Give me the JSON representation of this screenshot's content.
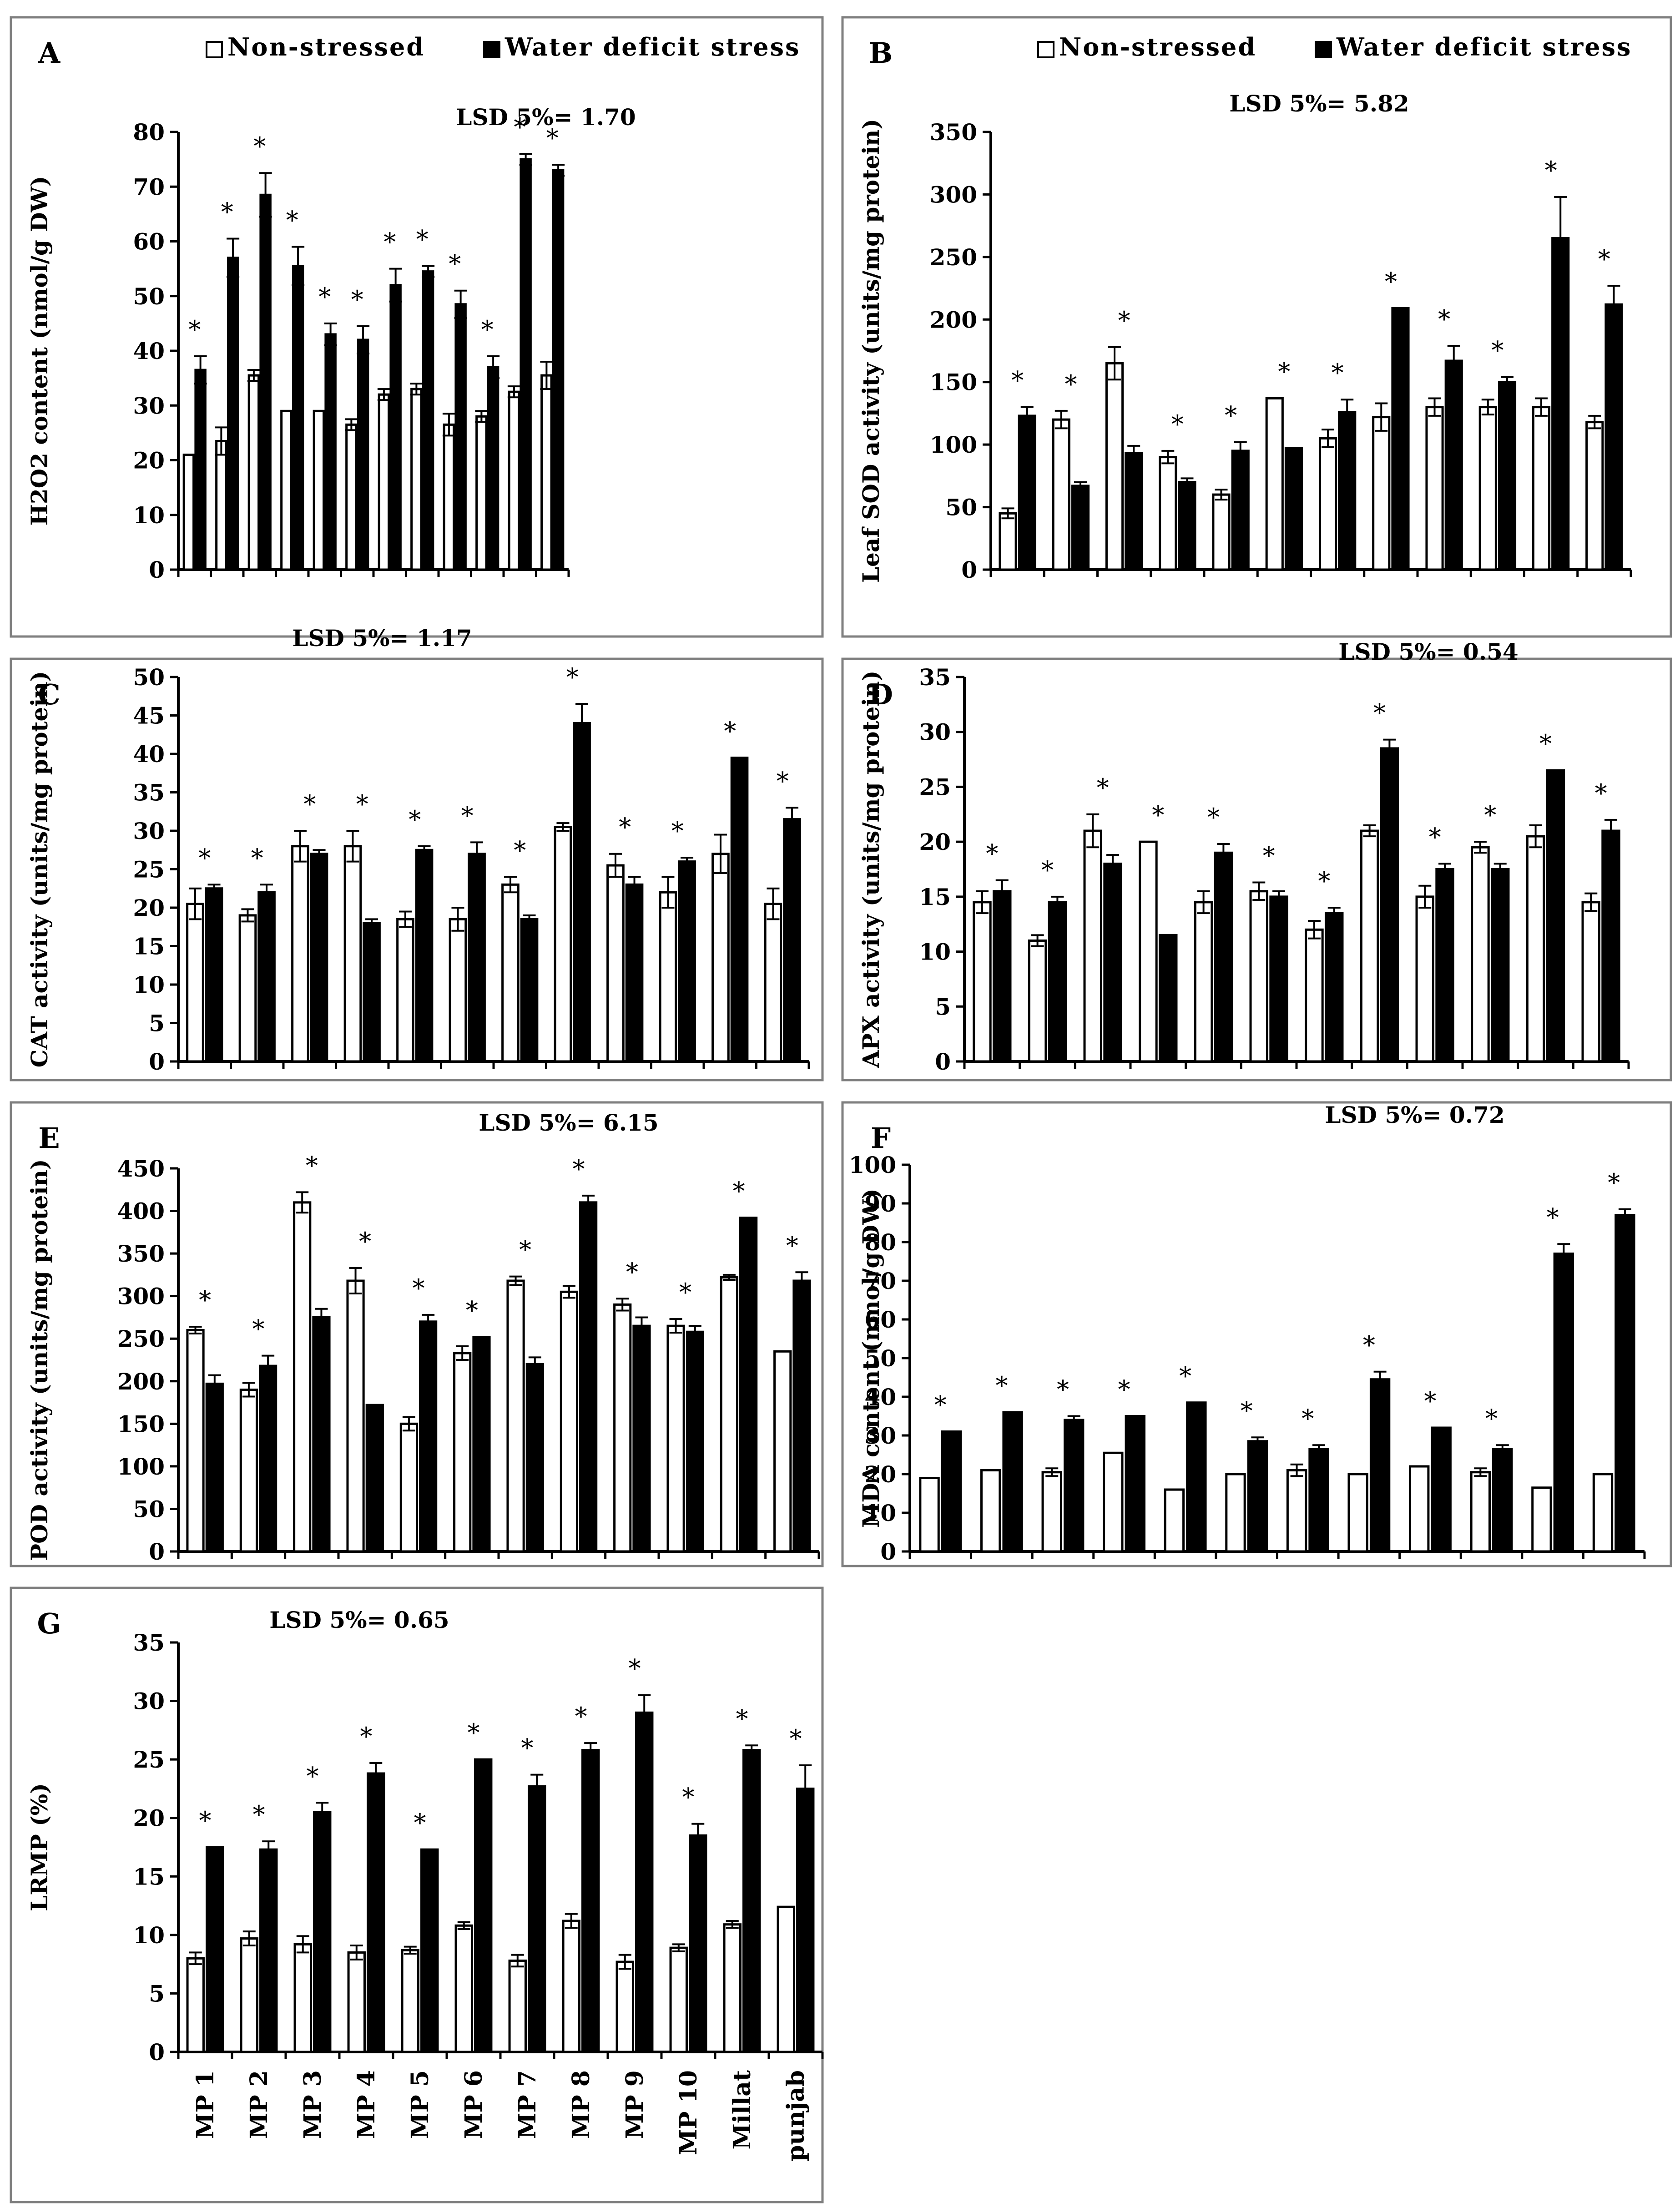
{
  "legend_labels": {
    "ns": "Non-stressed",
    "ws": "Water deficit stress"
  },
  "colors": {
    "ns": "#ffffff",
    "ws": "#000000",
    "frame": "#7f7f7f"
  },
  "categories": [
    "MP 1",
    "MP 2",
    "MP 3",
    "MP 4",
    "MP 5",
    "MP 6",
    "MP 7",
    "MP 8",
    "MP 9",
    "MP 10",
    "Millat",
    "punjab"
  ],
  "chart_data": [
    {
      "type": "bar",
      "letter": "A",
      "ylabel": "H2O2 content (nmol/g DW)",
      "lsd": "LSD 5%= 1.70",
      "ylim": [
        0,
        80
      ],
      "yticks": [
        0,
        10,
        20,
        30,
        40,
        50,
        60,
        70,
        80
      ],
      "legend": true,
      "series": [
        {
          "name": "Non-stressed",
          "values": [
            21,
            23.5,
            35.5,
            29,
            29,
            26.5,
            32,
            33,
            26.5,
            28,
            32.5,
            35.5
          ],
          "errors": [
            0,
            2.5,
            1,
            0,
            0,
            1,
            1,
            1,
            2,
            1,
            1,
            2.5
          ]
        },
        {
          "name": "Water deficit stress",
          "values": [
            36.5,
            57,
            68.5,
            55.5,
            43,
            42,
            52,
            54.5,
            48.5,
            37,
            75,
            73
          ],
          "errors": [
            2.5,
            3.5,
            4,
            3.5,
            2,
            2.5,
            3,
            1,
            2.5,
            2,
            1,
            1
          ]
        }
      ],
      "stars": [
        "*",
        "*",
        "*",
        "*",
        "*",
        "*",
        "*",
        "*",
        "*",
        "*",
        "*",
        "*"
      ]
    },
    {
      "type": "bar",
      "letter": "B",
      "ylabel": "Leaf SOD activity (units/mg protein)",
      "lsd": "LSD 5%= 5.82",
      "ylim": [
        0,
        350
      ],
      "yticks": [
        0,
        50,
        100,
        150,
        200,
        250,
        300,
        350
      ],
      "legend": true,
      "series": [
        {
          "name": "Non-stressed",
          "values": [
            45,
            120,
            165,
            90,
            60,
            137,
            105,
            122,
            130,
            130,
            130,
            118
          ],
          "errors": [
            4,
            7,
            13,
            5,
            4,
            0,
            7,
            11,
            7,
            6,
            7,
            5
          ]
        },
        {
          "name": "Water deficit stress",
          "values": [
            123,
            67,
            93,
            70,
            95,
            97,
            126,
            209,
            167,
            150,
            265,
            212
          ],
          "errors": [
            7,
            3,
            6,
            3,
            7,
            0,
            10,
            0,
            12,
            4,
            33,
            15
          ]
        }
      ],
      "stars": [
        "*",
        "*",
        "*",
        "*",
        "*",
        "*",
        "*",
        "*",
        "*",
        "*",
        "*",
        "*"
      ]
    },
    {
      "type": "bar",
      "letter": "C",
      "ylabel": "CAT activity (units/mg protein)",
      "lsd": "LSD 5%= 1.17",
      "ylim": [
        0,
        50
      ],
      "yticks": [
        0,
        5,
        10,
        15,
        20,
        25,
        30,
        35,
        40,
        45,
        50
      ],
      "legend": false,
      "series": [
        {
          "name": "Non-stressed",
          "values": [
            20.5,
            19,
            28,
            28,
            18.5,
            18.5,
            23,
            30.5,
            25.5,
            22,
            27,
            20.5
          ],
          "errors": [
            2,
            0.8,
            2,
            2,
            1,
            1.5,
            1,
            0.5,
            1.5,
            2,
            2.5,
            2
          ]
        },
        {
          "name": "Water deficit stress",
          "values": [
            22.5,
            22,
            27,
            18,
            27.5,
            27,
            18.5,
            44,
            23,
            26,
            39.5,
            31.5
          ],
          "errors": [
            0.5,
            1,
            0.5,
            0.5,
            0.5,
            1.5,
            0.5,
            2.5,
            1,
            0.5,
            0,
            1.5
          ]
        }
      ],
      "stars": [
        "*",
        "*",
        "*",
        "*",
        "*",
        "*",
        "*",
        "*",
        "*",
        "*",
        "*",
        "*"
      ]
    },
    {
      "type": "bar",
      "letter": "D",
      "ylabel": "APX activity (units/mg protein)",
      "lsd": "LSD 5%= 0.54",
      "ylim": [
        0,
        35
      ],
      "yticks": [
        0,
        5,
        10,
        15,
        20,
        25,
        30,
        35
      ],
      "legend": false,
      "series": [
        {
          "name": "Non-stressed",
          "values": [
            14.5,
            11,
            21,
            20,
            14.5,
            15.5,
            12,
            21,
            15,
            19.5,
            20.5,
            14.5
          ],
          "errors": [
            1,
            0.5,
            1.5,
            0,
            1,
            0.8,
            0.8,
            0.5,
            1,
            0.5,
            1,
            0.8
          ]
        },
        {
          "name": "Water deficit stress",
          "values": [
            15.5,
            14.5,
            18,
            11.5,
            19,
            15,
            13.5,
            28.5,
            17.5,
            17.5,
            26.5,
            21
          ],
          "errors": [
            1,
            0.5,
            0.8,
            0,
            0.8,
            0.5,
            0.5,
            0.8,
            0.5,
            0.5,
            0,
            1
          ]
        }
      ],
      "stars": [
        "*",
        "*",
        "*",
        "*",
        "*",
        "*",
        "*",
        "*",
        "*",
        "*",
        "*",
        "*"
      ]
    },
    {
      "type": "bar",
      "letter": "E",
      "ylabel": "POD activity (units/mg protein)",
      "lsd": "LSD 5%= 6.15",
      "ylim": [
        0,
        450
      ],
      "yticks": [
        0,
        50,
        100,
        150,
        200,
        250,
        300,
        350,
        400,
        450
      ],
      "legend": false,
      "series": [
        {
          "name": "Non-stressed",
          "values": [
            260,
            190,
            410,
            318,
            150,
            233,
            318,
            305,
            290,
            265,
            322,
            235
          ],
          "errors": [
            4,
            8,
            12,
            15,
            8,
            8,
            5,
            7,
            7,
            8,
            3,
            0
          ]
        },
        {
          "name": "Water deficit stress",
          "values": [
            197,
            218,
            275,
            172,
            270,
            252,
            220,
            410,
            265,
            258,
            392,
            318
          ],
          "errors": [
            10,
            12,
            10,
            0,
            8,
            0,
            8,
            8,
            10,
            7,
            0,
            10
          ]
        }
      ],
      "stars": [
        "*",
        "*",
        "*",
        "*",
        "*",
        "*",
        "*",
        "*",
        "*",
        "*",
        "*",
        "*"
      ]
    },
    {
      "type": "bar",
      "letter": "F",
      "ylabel": "MDA content (nmol/g DW)",
      "lsd": "LSD 5%= 0.72",
      "ylim": [
        0,
        100
      ],
      "yticks": [
        0,
        10,
        20,
        30,
        40,
        50,
        60,
        70,
        80,
        90,
        100
      ],
      "legend": false,
      "series": [
        {
          "name": "Non-stressed",
          "values": [
            19,
            21,
            20.5,
            25.5,
            16,
            20,
            21,
            20,
            22,
            20.5,
            16.5,
            20
          ],
          "errors": [
            0,
            0,
            1,
            0,
            0,
            0,
            1.5,
            0,
            0,
            1,
            0,
            0
          ]
        },
        {
          "name": "Water deficit stress",
          "values": [
            31,
            36,
            34,
            35,
            38.5,
            28.5,
            26.5,
            44.5,
            32,
            26.5,
            77,
            87
          ],
          "errors": [
            0,
            0,
            1,
            0,
            0,
            1,
            1,
            2,
            0,
            1,
            2.5,
            1.5
          ]
        }
      ],
      "stars": [
        "*",
        "*",
        "*",
        "*",
        "*",
        "*",
        "*",
        "*",
        "*",
        "*",
        "*",
        "*"
      ]
    },
    {
      "type": "bar",
      "letter": "G",
      "ylabel": "LRMP (%)",
      "lsd": "LSD 5%= 0.65",
      "ylim": [
        0,
        35
      ],
      "yticks": [
        0,
        5,
        10,
        15,
        20,
        25,
        30,
        35
      ],
      "legend": false,
      "series": [
        {
          "name": "Non-stressed",
          "values": [
            8,
            9.7,
            9.2,
            8.5,
            8.7,
            10.8,
            7.8,
            11.2,
            7.7,
            8.9,
            10.9,
            12.4
          ],
          "errors": [
            0.5,
            0.6,
            0.7,
            0.6,
            0.3,
            0.3,
            0.5,
            0.6,
            0.6,
            0.3,
            0.3,
            0
          ]
        },
        {
          "name": "Water deficit stress",
          "values": [
            17.5,
            17.3,
            20.5,
            23.8,
            17.3,
            25,
            22.7,
            25.8,
            29,
            18.5,
            25.8,
            22.5
          ],
          "errors": [
            0,
            0.7,
            0.8,
            0.9,
            0,
            0,
            1,
            0.6,
            1.5,
            1,
            0.4,
            2
          ]
        }
      ],
      "stars": [
        "*",
        "*",
        "*",
        "*",
        "*",
        "*",
        "*",
        "*",
        "*",
        "*",
        "*",
        "*"
      ],
      "show_categories": true
    }
  ]
}
